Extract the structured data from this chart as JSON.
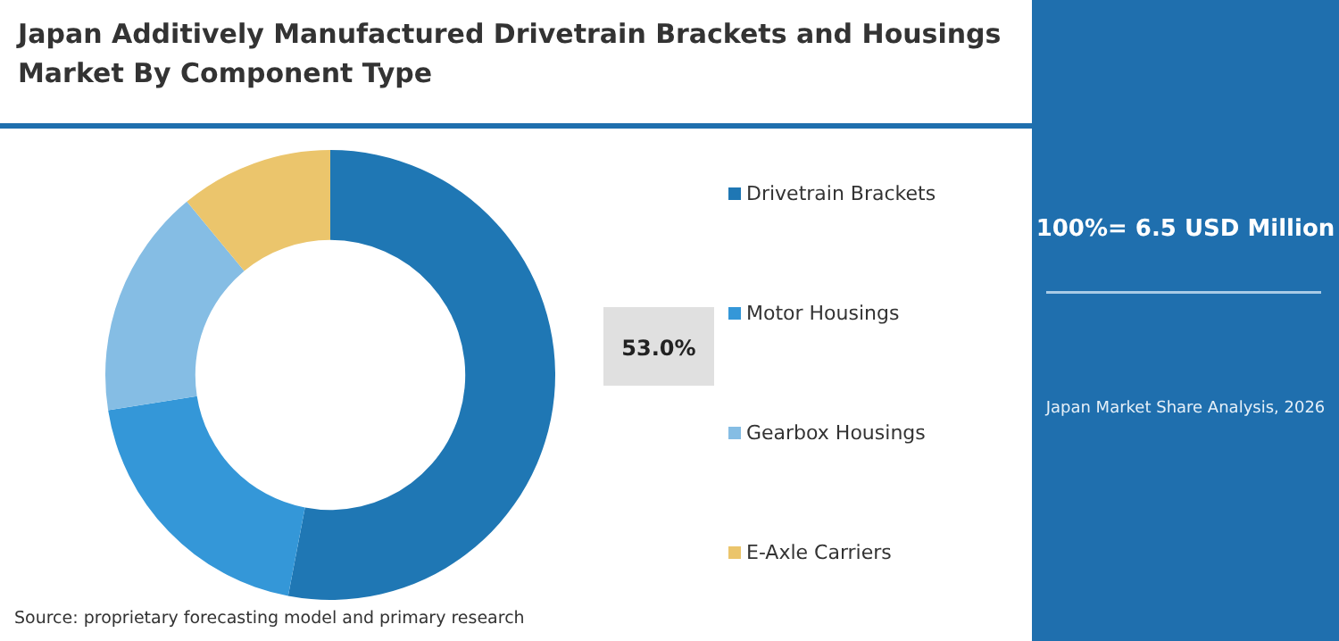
{
  "chart_data": {
    "type": "donut",
    "title": "Japan Additively Manufactured Drivetrain Brackets and Housings Market By Component Type",
    "categories": [
      "Drivetrain Brackets",
      "Motor Housings",
      "Gearbox Housings",
      "E-Axle Carriers"
    ],
    "values": [
      53.0,
      19.5,
      16.5,
      11.0
    ],
    "colors": [
      "#1f77b4",
      "#3497d8",
      "#85bde4",
      "#ebc56c"
    ],
    "value_labels": [
      "53.0%",
      null,
      null,
      null
    ],
    "legend": "right",
    "annotations": [
      "100%= 6.5 USD Million",
      "Japan Market Share Analysis, 2026",
      "Source: proprietary forecasting model and primary research"
    ]
  }
}
